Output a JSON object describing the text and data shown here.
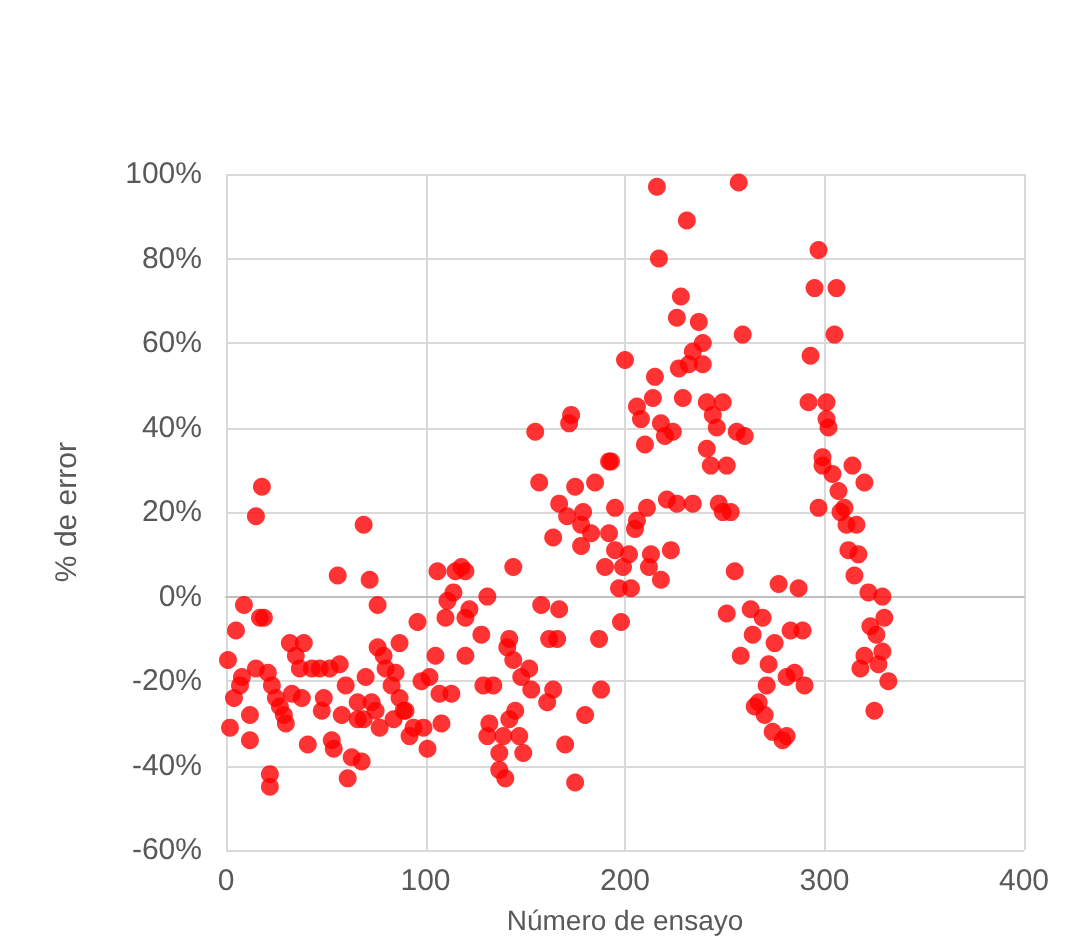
{
  "chart_data": {
    "type": "scatter",
    "xlabel": "Número de ensayo",
    "ylabel": "% de error",
    "color": "#ff0000",
    "marker": "circle",
    "grid": true,
    "xlim": [
      0,
      400
    ],
    "xticks": [
      0,
      100,
      200,
      300,
      400
    ],
    "ylim": [
      -60,
      100
    ],
    "yticks": [
      {
        "value": -60,
        "label": "-60%"
      },
      {
        "value": -40,
        "label": "-40%"
      },
      {
        "value": -20,
        "label": "-20%"
      },
      {
        "value": 0,
        "label": "0%"
      },
      {
        "value": 20,
        "label": "20%"
      },
      {
        "value": 40,
        "label": "40%"
      },
      {
        "value": 60,
        "label": "60%"
      },
      {
        "value": 80,
        "label": "80%"
      },
      {
        "value": 100,
        "label": "100%"
      }
    ],
    "x": [
      1,
      2,
      4,
      5,
      7,
      8,
      9,
      12,
      12,
      15,
      15,
      17,
      18,
      19,
      21,
      22,
      22,
      23,
      25,
      27,
      29,
      30,
      32,
      35,
      33,
      38,
      37,
      39,
      41,
      43,
      47,
      48,
      49,
      52,
      53,
      54,
      56,
      57,
      58,
      60,
      61,
      63,
      66,
      66,
      68,
      69,
      69,
      70,
      72,
      73,
      75,
      76,
      76,
      77,
      79,
      80,
      83,
      84,
      85,
      87,
      87,
      89,
      90,
      92,
      94,
      96,
      98,
      99,
      101,
      102,
      105,
      106,
      107,
      108,
      111,
      110,
      113,
      114,
      115,
      118,
      120,
      120,
      120,
      122,
      128,
      129,
      131,
      131,
      132,
      134,
      137,
      137,
      139,
      140,
      141,
      142,
      142,
      144,
      144,
      145,
      147,
      148,
      149,
      152,
      153,
      155,
      157,
      158,
      161,
      162,
      164,
      164,
      166,
      167,
      167,
      170,
      171,
      172,
      173,
      175,
      175,
      178,
      179,
      178,
      180,
      183,
      185,
      187,
      188,
      190,
      192,
      192,
      193,
      195,
      195,
      197,
      198,
      199,
      200,
      202,
      203,
      205,
      206,
      206,
      208,
      210,
      211,
      212,
      213,
      214,
      215,
      216,
      217,
      218,
      218,
      220,
      221,
      223,
      224,
      226,
      226,
      227,
      228,
      229,
      231,
      232,
      234,
      234,
      237,
      239,
      239,
      241,
      241,
      243,
      244,
      246,
      247,
      249,
      249,
      251,
      251,
      253,
      255,
      256,
      257,
      258,
      259,
      260,
      263,
      264,
      265,
      267,
      269,
      270,
      271,
      272,
      274,
      275,
      277,
      279,
      281,
      281,
      283,
      285,
      287,
      289,
      290,
      292,
      293,
      295,
      297,
      297,
      299,
      299,
      301,
      301,
      302,
      304,
      305,
      306,
      307,
      308,
      310,
      311,
      312,
      314,
      315,
      316,
      317,
      318,
      320,
      320,
      322,
      323,
      325,
      326,
      327,
      329,
      329,
      330,
      332
    ],
    "values": [
      -15,
      -31,
      -24,
      -8,
      -21,
      -19,
      -2,
      -28,
      -34,
      19,
      -17,
      -5,
      26,
      -5,
      -18,
      -42,
      -45,
      -21,
      -24,
      -26,
      -28,
      -30,
      -11,
      -14,
      -23,
      -24,
      -17,
      -11,
      -35,
      -17,
      -17,
      -27,
      -24,
      -17,
      -34,
      -36,
      5,
      -16,
      -28,
      -21,
      -43,
      -38,
      -25,
      -29,
      -39,
      -29,
      17,
      -19,
      4,
      -25,
      -27,
      -2,
      -12,
      -31,
      -14,
      -17,
      -21,
      -29,
      -18,
      -11,
      -24,
      -27,
      -27,
      -33,
      -31,
      -6,
      -20,
      -31,
      -36,
      -19,
      -14,
      6,
      -23,
      -30,
      -1,
      -5,
      -23,
      1,
      6,
      7,
      6,
      -5,
      -14,
      -3,
      -9,
      -21,
      0,
      -33,
      -30,
      -21,
      -41,
      -37,
      -33,
      -43,
      -12,
      -29,
      -10,
      7,
      -15,
      -27,
      -33,
      -19,
      -37,
      -17,
      -22,
      39,
      27,
      -2,
      -25,
      -10,
      14,
      -22,
      -10,
      -3,
      22,
      -35,
      19,
      41,
      43,
      -44,
      26,
      17,
      20,
      12,
      -28,
      15,
      27,
      -10,
      -22,
      7,
      32,
      15,
      32,
      11,
      21,
      2,
      -6,
      7,
      56,
      10,
      2,
      16,
      18,
      45,
      42,
      36,
      21,
      7,
      10,
      47,
      52,
      97,
      80,
      4,
      41,
      38,
      23,
      11,
      39,
      66,
      22,
      54,
      71,
      47,
      89,
      55,
      58,
      22,
      65,
      60,
      55,
      46,
      35,
      31,
      43,
      40,
      22,
      20,
      46,
      31,
      -4,
      20,
      6,
      39,
      98,
      -14,
      62,
      38,
      -3,
      -9,
      -26,
      -25,
      -5,
      -28,
      -21,
      -16,
      -32,
      -11,
      3,
      -34,
      -33,
      -19,
      -8,
      -18,
      2,
      -8,
      -21,
      46,
      57,
      73,
      21,
      82,
      31,
      33,
      46,
      42,
      40,
      29,
      62,
      73,
      25,
      20,
      21,
      17,
      11,
      31,
      5,
      17,
      10,
      -17,
      27,
      -14,
      1,
      -7,
      -27,
      -9,
      -16,
      0,
      -13,
      -5,
      -20
    ]
  }
}
